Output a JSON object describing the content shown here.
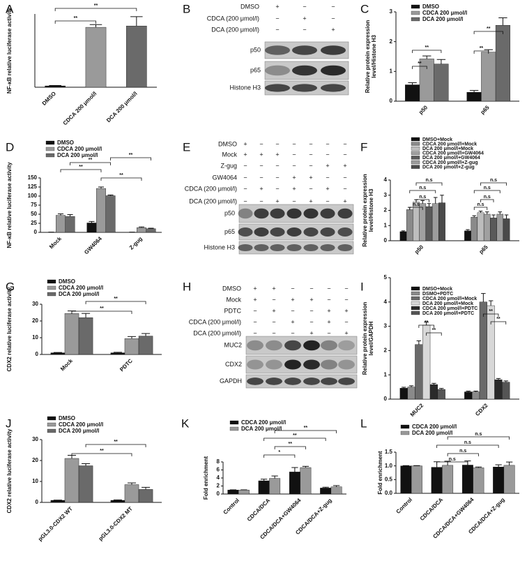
{
  "chart_data": [
    {
      "type": "bar",
      "panel": "A",
      "ylabel": "NF-κB relative luciferase activity",
      "categories": [
        "DMSO",
        "CDCA 200 μmol/l",
        "DCA 200 μmol/l"
      ],
      "values": [
        1,
        45,
        46
      ],
      "errors": [
        0.3,
        2,
        7
      ],
      "colors": [
        "#111111",
        "#9a9a9a",
        "#6a6a6a"
      ],
      "ylim": [
        0,
        55
      ],
      "annotations": [
        "**",
        "**"
      ]
    },
    {
      "type": "bar",
      "panel": "C",
      "ylabel": [
        "Relative protein expression",
        "level/Histone H3"
      ],
      "categories": [
        "p50",
        "p65"
      ],
      "series": [
        {
          "name": "DMSO",
          "color": "#111111",
          "values": [
            0.55,
            0.3
          ],
          "errors": [
            0.07,
            0.06
          ]
        },
        {
          "name": "CDCA 200 μmol/l",
          "color": "#9a9a9a",
          "values": [
            1.42,
            1.65
          ],
          "errors": [
            0.1,
            0.08
          ]
        },
        {
          "name": "DCA 200 μmol/l",
          "color": "#6a6a6a",
          "values": [
            1.25,
            2.55
          ],
          "errors": [
            0.15,
            0.25
          ]
        }
      ],
      "ylim": [
        0,
        3
      ],
      "yticks": [
        0,
        1,
        2,
        3
      ],
      "annotations": [
        "**",
        "**",
        "**",
        "**"
      ]
    },
    {
      "type": "bar",
      "panel": "D",
      "ylabel": "NF-κB relative luciferase activity",
      "categories": [
        "Mock",
        "GW4064",
        "Z-gug"
      ],
      "series": [
        {
          "name": "DMSO",
          "color": "#111111",
          "values": [
            0.5,
            26,
            0.5
          ],
          "errors": [
            0.2,
            4,
            0.2
          ]
        },
        {
          "name": "CDCA 200 μmol/l",
          "color": "#9a9a9a",
          "values": [
            47,
            121,
            13
          ],
          "errors": [
            4,
            4,
            2
          ]
        },
        {
          "name": "DCA 200 μmol/l",
          "color": "#6a6a6a",
          "values": [
            44,
            101,
            10
          ],
          "errors": [
            5,
            2,
            1.5
          ]
        }
      ],
      "ylim": [
        0,
        150
      ],
      "yticks": [
        0,
        25,
        50,
        75,
        100,
        125,
        150
      ],
      "annotations": [
        "**",
        "**",
        "**",
        "**"
      ]
    },
    {
      "type": "bar",
      "panel": "F",
      "ylabel": [
        "Relative protein expression",
        "level/Histone H3"
      ],
      "categories": [
        "p50",
        "p65"
      ],
      "series": [
        {
          "name": "DMSO+Mock",
          "color": "#111111",
          "values": [
            0.6,
            0.65
          ],
          "errors": [
            0.05,
            0.08
          ]
        },
        {
          "name": "CDCA 200 μmol/l+Mock",
          "color": "#8a8a8a",
          "values": [
            2.05,
            1.55
          ],
          "errors": [
            0.15,
            0.1
          ]
        },
        {
          "name": "DCA 200 μmol/l+Mock",
          "color": "#bdbdbd",
          "values": [
            2.55,
            1.85
          ],
          "errors": [
            0.15,
            0.1
          ]
        },
        {
          "name": "CDCA 200 μmol/l+GW4064",
          "color": "#a0a0a0",
          "values": [
            2.45,
            1.75
          ],
          "errors": [
            0.2,
            0.15
          ]
        },
        {
          "name": "DCA 200 μmol/l+GW4064",
          "color": "#5a5a5a",
          "values": [
            2.25,
            1.5
          ],
          "errors": [
            0.2,
            0.2
          ]
        },
        {
          "name": "CDCA 200 μmol/l+Z-gug",
          "color": "#9c9c9c",
          "values": [
            2.45,
            1.75
          ],
          "errors": [
            0.4,
            0.15
          ]
        },
        {
          "name": "DCA 200 μmol/l+Z-gug",
          "color": "#4a4a4a",
          "values": [
            2.5,
            1.45
          ],
          "errors": [
            0.5,
            0.25
          ]
        }
      ],
      "ylim": [
        0,
        4
      ],
      "yticks": [
        0,
        1,
        2,
        3,
        4
      ],
      "annotations": [
        "n.s",
        "n.s",
        "n.s",
        "n.s",
        "n.s",
        "n.s",
        "n.s",
        "n.s"
      ]
    },
    {
      "type": "bar",
      "panel": "G",
      "ylabel": "CDX2 relative luciferase activity",
      "categories": [
        "Mock",
        "PDTC"
      ],
      "series": [
        {
          "name": "DMSO",
          "color": "#111111",
          "values": [
            1,
            1
          ],
          "errors": [
            0.2,
            0.3
          ]
        },
        {
          "name": "CDCA 200 μmol/l",
          "color": "#9a9a9a",
          "values": [
            24.5,
            9.5
          ],
          "errors": [
            1.5,
            1.2
          ]
        },
        {
          "name": "DCA 200 μmol/l",
          "color": "#6a6a6a",
          "values": [
            22,
            11
          ],
          "errors": [
            2.5,
            1.5
          ]
        }
      ],
      "ylim": [
        0,
        30
      ],
      "yticks": [
        0,
        10,
        20,
        30
      ],
      "annotations": [
        "**",
        "**"
      ]
    },
    {
      "type": "bar",
      "panel": "I",
      "ylabel": [
        "Relative protein expression",
        "level/GAPDH"
      ],
      "categories": [
        "MUC2",
        "CDX2"
      ],
      "series": [
        {
          "name": "DMSO+Mock",
          "color": "#111111",
          "values": [
            0.45,
            0.3
          ],
          "errors": [
            0.04,
            0.03
          ]
        },
        {
          "name": "DSMO+PDTC",
          "color": "#8a8a8a",
          "values": [
            0.5,
            0.3
          ],
          "errors": [
            0.05,
            0.03
          ]
        },
        {
          "name": "CDCA 200 μmol/l+Mock",
          "color": "#6a6a6a",
          "values": [
            2.25,
            4.0
          ],
          "errors": [
            0.15,
            0.35
          ]
        },
        {
          "name": "DCA 200 μmol/l+Mock",
          "color": "#d8d8d8",
          "values": [
            3.05,
            3.85
          ],
          "errors": [
            0.12,
            0.2
          ]
        },
        {
          "name": "CDCA 200 μmol/l+PDTC",
          "color": "#2a2a2a",
          "values": [
            0.6,
            0.8
          ],
          "errors": [
            0.05,
            0.05
          ]
        },
        {
          "name": "DCA 200 μmol/l+PDTC",
          "color": "#555555",
          "values": [
            0.4,
            0.7
          ],
          "errors": [
            0.04,
            0.05
          ]
        }
      ],
      "ylim": [
        0,
        5
      ],
      "yticks": [
        0,
        1,
        2,
        3,
        4,
        5
      ],
      "annotations": [
        "**",
        "**",
        "**",
        "**"
      ]
    },
    {
      "type": "bar",
      "panel": "J",
      "ylabel": "CDX2 relative luciferase activity",
      "categories": [
        "pGL3.0-CDX2 WT",
        "pGL3.0-CDX2 MT"
      ],
      "series": [
        {
          "name": "DMSO",
          "color": "#111111",
          "values": [
            1,
            1
          ],
          "errors": [
            0.1,
            0.2
          ]
        },
        {
          "name": "CDCA 200 μmol/l",
          "color": "#9a9a9a",
          "values": [
            21,
            8.5
          ],
          "errors": [
            1.5,
            0.8
          ]
        },
        {
          "name": "DCA 200 μmol/l",
          "color": "#6a6a6a",
          "values": [
            17.5,
            6.2
          ],
          "errors": [
            1,
            1
          ]
        }
      ],
      "ylim": [
        0,
        30
      ],
      "yticks": [
        0,
        10,
        20,
        30
      ],
      "annotations": [
        "**",
        "**"
      ]
    },
    {
      "type": "bar",
      "panel": "K",
      "ylabel": "Fold enrichment",
      "categories": [
        "Control",
        "CDCA/DCA",
        "CDCA/DCA+GW4064",
        "CDCA/DCA+Z-gug"
      ],
      "series": [
        {
          "name": "CDCA 200 μmol/l",
          "color": "#111111",
          "values": [
            1,
            3.3,
            5.5,
            1.5
          ],
          "errors": [
            0.05,
            0.4,
            1.1,
            0.2
          ]
        },
        {
          "name": "DCA 200 μmol/l",
          "color": "#9a9a9a",
          "values": [
            1,
            3.9,
            6.6,
            1.8
          ],
          "errors": [
            0.05,
            0.6,
            0.3,
            0.3
          ]
        }
      ],
      "ylim": [
        0,
        8
      ],
      "yticks": [
        0,
        2,
        4,
        6,
        8
      ],
      "annotations": [
        "*",
        "**",
        "**",
        "**"
      ]
    },
    {
      "type": "bar",
      "panel": "L",
      "ylabel": "Fold enrichment",
      "categories": [
        "Control",
        "CDCA/DCA",
        "CDCA/DCA+GW4064",
        "CDCA/DCA+Z-gug"
      ],
      "series": [
        {
          "name": "CDCA 200 μmol/l",
          "color": "#111111",
          "values": [
            1,
            0.95,
            1.03,
            0.96
          ],
          "errors": [
            0.01,
            0.2,
            0.15,
            0.08
          ]
        },
        {
          "name": "DCA 200 μmol/l",
          "color": "#9a9a9a",
          "values": [
            1,
            1.02,
            0.93,
            1.02
          ],
          "errors": [
            0.01,
            0.15,
            0.03,
            0.12
          ]
        }
      ],
      "ylim": [
        0,
        1.5
      ],
      "yticks": [
        {
          "value": 0,
          "label": "0.0"
        },
        {
          "value": 0.5,
          "label": "0.5"
        },
        {
          "value": 1,
          "label": "1.0"
        },
        {
          "value": 1.5,
          "label": "1.5"
        }
      ],
      "annotations": [
        "n.s",
        "n.s",
        "n.s",
        "n.s"
      ]
    }
  ],
  "blots": [
    {
      "panel": "B",
      "treatments": [
        {
          "name": "DMSO",
          "signs": [
            "+",
            "−",
            "−"
          ]
        },
        {
          "name": "CDCA (200 μmol/l)",
          "signs": [
            "−",
            "+",
            "−"
          ]
        },
        {
          "name": "DCA (200 μmol/l)",
          "signs": [
            "−",
            "−",
            "+"
          ]
        }
      ],
      "bands": [
        "p50",
        "p65",
        "Histone H3"
      ]
    },
    {
      "panel": "E",
      "treatments": [
        {
          "name": "DMSO",
          "signs": [
            "+",
            "−",
            "−",
            "−",
            "−",
            "−",
            "−"
          ]
        },
        {
          "name": "Mock",
          "signs": [
            "+",
            "+",
            "+",
            "−",
            "−",
            "−",
            "−"
          ]
        },
        {
          "name": "Z-gug",
          "signs": [
            "−",
            "−",
            "−",
            "−",
            "−",
            "+",
            "+"
          ]
        },
        {
          "name": "GW4064",
          "signs": [
            "−",
            "−",
            "−",
            "+",
            "+",
            "−",
            "−"
          ]
        },
        {
          "name": "CDCA (200 μmol/l)",
          "signs": [
            "−",
            "+",
            "−",
            "+",
            "−",
            "+",
            "−"
          ]
        },
        {
          "name": "DCA  (200 μmol/l)",
          "signs": [
            "−",
            "−",
            "+",
            "−",
            "+",
            "−",
            "+"
          ]
        }
      ],
      "bands": [
        "p50",
        "p65",
        "Histone H3"
      ]
    },
    {
      "panel": "H",
      "treatments": [
        {
          "name": "DMSO",
          "signs": [
            "+",
            "+",
            "−",
            "−",
            "−",
            "−"
          ]
        },
        {
          "name": "Mock",
          "signs": [
            "+",
            "−",
            "+",
            "+",
            "−",
            "−"
          ]
        },
        {
          "name": "PDTC",
          "signs": [
            "−",
            "+",
            "−",
            "−",
            "+",
            "+"
          ]
        },
        {
          "name": "CDCA (200 μmol/l)",
          "signs": [
            "−",
            "−",
            "+",
            "−",
            "+",
            "−"
          ]
        },
        {
          "name": "DCA  (200 μmol/l)",
          "signs": [
            "−",
            "−",
            "−",
            "+",
            "−",
            "+"
          ]
        }
      ],
      "bands": [
        "MUC2",
        "CDX2",
        "GAPDH"
      ]
    }
  ]
}
